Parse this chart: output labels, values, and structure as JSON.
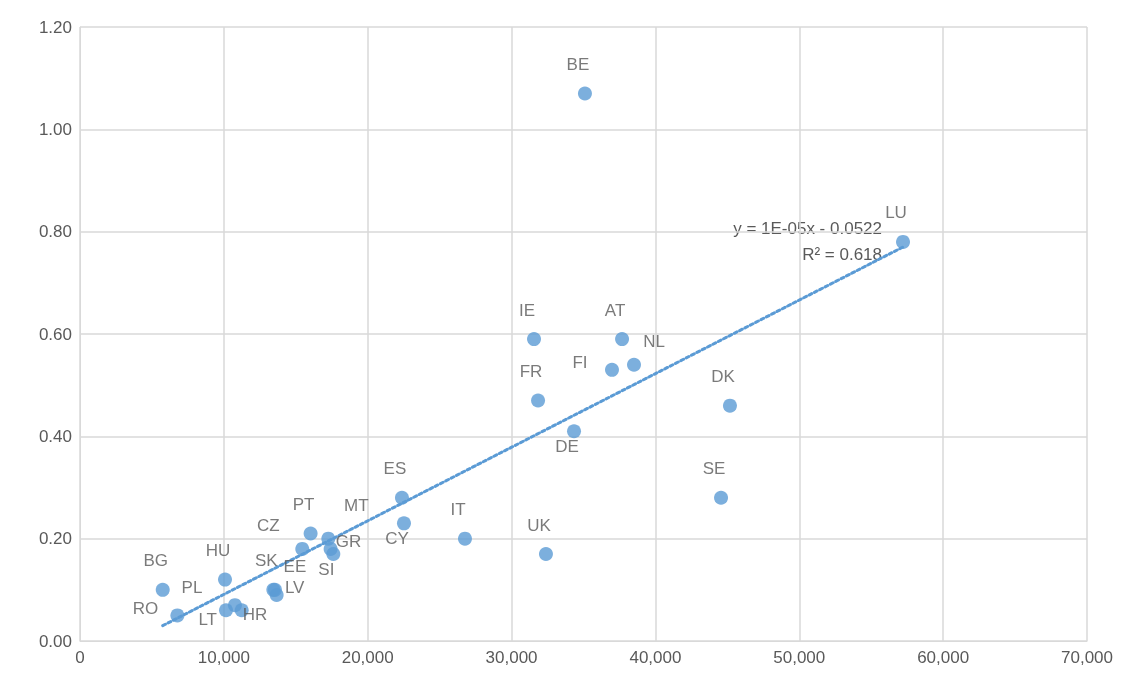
{
  "chart_data": {
    "type": "scatter",
    "marker": "circle",
    "grid": true,
    "legend": false,
    "xlim": [
      0,
      70000
    ],
    "xticks": [
      0,
      {
        "value": 10000,
        "label": "10,000"
      },
      {
        "value": 20000,
        "label": "20,000"
      },
      {
        "value": 30000,
        "label": "30,000"
      },
      {
        "value": 40000,
        "label": "40,000"
      },
      {
        "value": 50000,
        "label": "50,000"
      },
      {
        "value": 60000,
        "label": "60,000"
      },
      {
        "value": 70000,
        "label": "70,000"
      }
    ],
    "ylim": [
      0,
      1.2
    ],
    "yticks": [
      {
        "value": 0,
        "label": "0.00"
      },
      {
        "value": 0.2,
        "label": "0.20"
      },
      {
        "value": 0.4,
        "label": "0.40"
      },
      {
        "value": 0.6,
        "label": "0.60"
      },
      {
        "value": 0.8,
        "label": "0.80"
      },
      {
        "value": 1,
        "label": "1.00"
      },
      {
        "value": 1.2,
        "label": "1.20"
      }
    ],
    "annotations": [
      "y = 1E-05x - 0.0522",
      "R² = 0.618"
    ],
    "series": [
      {
        "type": "scatter",
        "color": "#5b9bd5",
        "x": [
          35100,
          57210,
          31560,
          37680,
          36980,
          38510,
          31840,
          34340,
          45180,
          44560,
          22380,
          22520,
          26760,
          32390,
          5750,
          6770,
          10080,
          10150,
          10770,
          11240,
          13670,
          16030,
          17260,
          15450,
          17420,
          17610,
          13440,
          13550
        ],
        "values": [
          1.07,
          0.78,
          0.59,
          0.59,
          0.53,
          0.54,
          0.47,
          0.41,
          0.46,
          0.28,
          0.28,
          0.23,
          0.2,
          0.17,
          0.1,
          0.05,
          0.12,
          0.06,
          0.07,
          0.06,
          0.09,
          0.21,
          0.2,
          0.18,
          0.18,
          0.17,
          0.1,
          0.1
        ],
        "value_labels": [
          "BE",
          "LU",
          "IE",
          "AT",
          "FI",
          "NL",
          "FR",
          "DE",
          "DK",
          "SE",
          "ES",
          "CY",
          "IT",
          "UK",
          "BG",
          "RO",
          "HU",
          "PL",
          "HR",
          "LT",
          "LV",
          "PT",
          "MT",
          "CZ",
          "GR",
          "SI",
          "SK",
          "EE"
        ]
      },
      {
        "type": "line",
        "color": "#5b9bd5",
        "line_style": "dotted",
        "marker": "none",
        "x": [
          5750,
          57210
        ],
        "values": [
          0.03,
          0.77
        ]
      }
    ]
  }
}
